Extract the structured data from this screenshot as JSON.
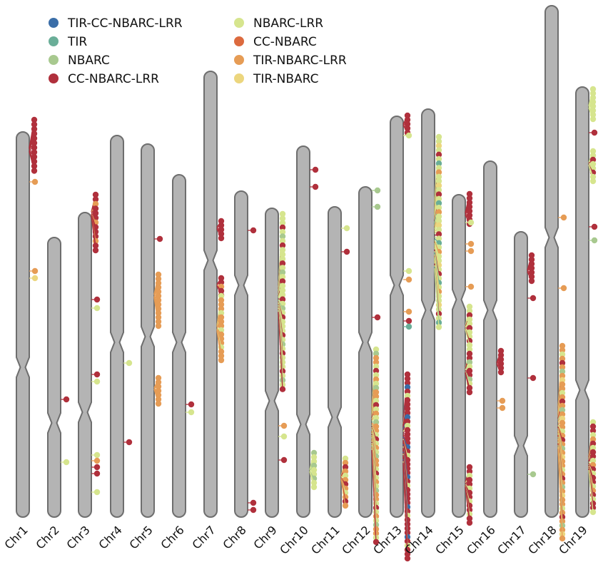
{
  "legend": [
    {
      "label": "TIR-CC-NBARC-LRR",
      "color": "#3b6ea8"
    },
    {
      "label": "TIR",
      "color": "#6aae98"
    },
    {
      "label": "NBARC",
      "color": "#a8c98f"
    },
    {
      "label": "CC-NBARC-LRR",
      "color": "#b0303c"
    },
    {
      "label": "NBARC-LRR",
      "color": "#d6e58e"
    },
    {
      "label": "CC-NBARC",
      "color": "#dc6a3e"
    },
    {
      "label": "TIR-NBARC-LRR",
      "color": "#e69c55"
    },
    {
      "label": "TIR-NBARC",
      "color": "#ecd67e"
    }
  ],
  "chromosomes": [
    "Chr1",
    "Chr2",
    "Chr3",
    "Chr4",
    "Chr5",
    "Chr6",
    "Chr7",
    "Chr8",
    "Chr9",
    "Chr10",
    "Chr11",
    "Chr12",
    "Chr13",
    "Chr14",
    "Chr15",
    "Chr16",
    "Chr17",
    "Chr18",
    "Chr19"
  ],
  "style": {
    "chromosome_fill": "#b4b4b4",
    "chromosome_stroke": "#6e6e6e"
  }
}
